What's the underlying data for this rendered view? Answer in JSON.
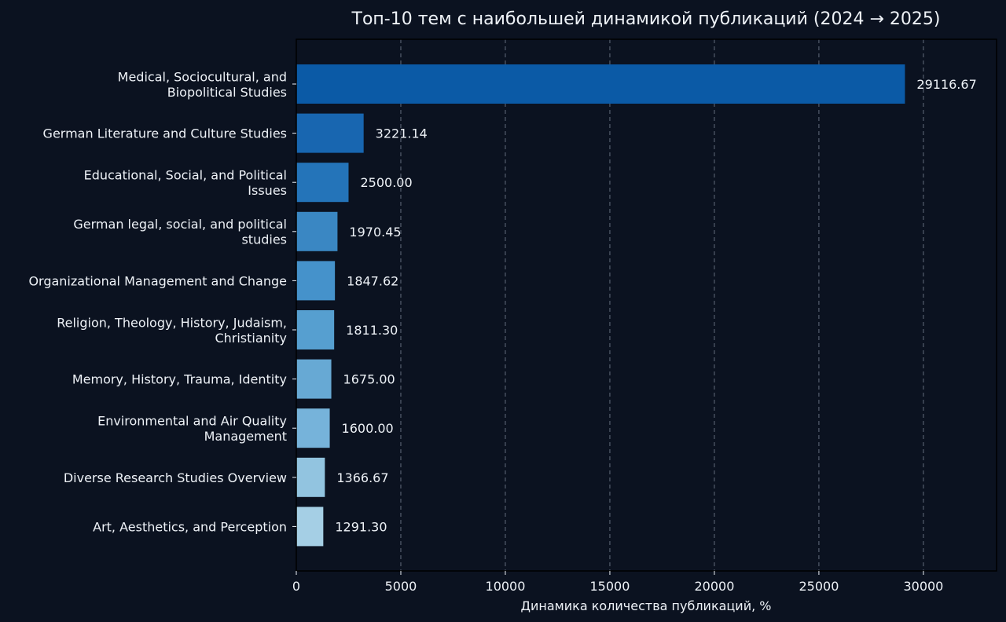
{
  "chart_data": {
    "type": "bar",
    "orientation": "horizontal",
    "title": "Топ-10 тем с наибольшей динамикой публикаций (2024 → 2025)",
    "xlabel": "Динамика количества публикаций, %",
    "ylabel": "",
    "xlim": [
      0,
      33500
    ],
    "xticks": [
      0,
      5000,
      10000,
      15000,
      20000,
      25000,
      30000
    ],
    "grid": "x-dashed",
    "categories": [
      "Medical, Sociocultural, and\nBiopolitical Studies",
      "German Literature and Culture Studies",
      "Educational, Social, and Political\nIssues",
      "German legal, social, and political\nstudies",
      "Organizational Management and Change",
      "Religion, Theology, History, Judaism,\nChristianity",
      "Memory, History, Trauma, Identity",
      "Environmental and Air Quality\nManagement",
      "Diverse Research Studies Overview",
      "Art, Aesthetics, and Perception"
    ],
    "values": [
      29116.67,
      3221.14,
      2500.0,
      1970.45,
      1847.62,
      1811.3,
      1675.0,
      1600.0,
      1366.67,
      1291.3
    ],
    "value_labels": [
      "29116.67",
      "3221.14",
      "2500.00",
      "1970.45",
      "1847.62",
      "1811.30",
      "1675.00",
      "1600.00",
      "1366.67",
      "1291.30"
    ],
    "bar_colors": [
      "#0b5aa6",
      "#1866b0",
      "#2474b9",
      "#3a87c3",
      "#4592cb",
      "#569fd0",
      "#67a9d4",
      "#76b3da",
      "#92c4e0",
      "#a5cfe5"
    ]
  }
}
